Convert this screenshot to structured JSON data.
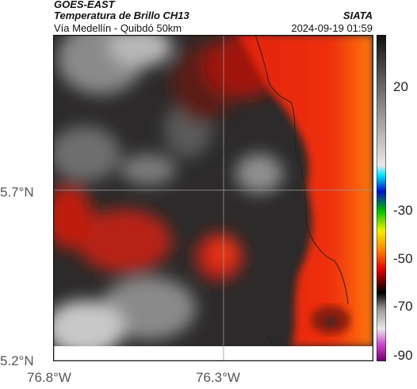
{
  "header": {
    "source": "GOES-EAST",
    "product": "Temperatura de Brillo CH13",
    "region": "Vía Medellín - Quibdó 50km",
    "organization": "SIATA",
    "timestamp": "2024-09-19 01:59"
  },
  "axes": {
    "lat_labels": [
      "5.7°N",
      "5.2°N"
    ],
    "lon_labels": [
      "76.8°W",
      "76.3°W"
    ]
  },
  "colorbar": {
    "tick_labels": [
      "20",
      "-30",
      "-50",
      "-70",
      "-90"
    ],
    "range": [
      -90,
      35
    ]
  },
  "colors": {
    "cold": "#e02010",
    "warm": "#2a2a2a",
    "grid": "#999999"
  }
}
